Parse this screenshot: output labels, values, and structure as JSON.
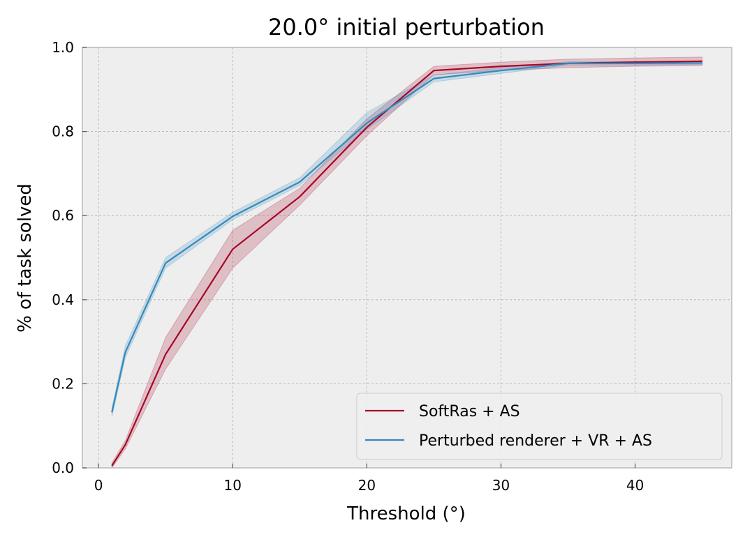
{
  "chart_data": {
    "type": "line",
    "title": "20.0° initial perturbation",
    "xlabel": "Threshold (°)",
    "ylabel": "% of task solved",
    "xlim": [
      -1.2,
      47.2
    ],
    "ylim": [
      0.0,
      1.0
    ],
    "xticks": [
      0,
      10,
      20,
      30,
      40
    ],
    "yticks": [
      0.0,
      0.2,
      0.4,
      0.6,
      0.8,
      1.0
    ],
    "xtick_labels": [
      "0",
      "10",
      "20",
      "30",
      "40"
    ],
    "ytick_labels": [
      "0.0",
      "0.2",
      "0.4",
      "0.6",
      "0.8",
      "1.0"
    ],
    "grid": true,
    "legend_position": "bottom-right",
    "series": [
      {
        "name": "SoftRas + AS",
        "color": "#a60628",
        "x": [
          1,
          2,
          5,
          10,
          15,
          20,
          25,
          30,
          35,
          40,
          45
        ],
        "y": [
          0.005,
          0.055,
          0.27,
          0.52,
          0.645,
          0.81,
          0.945,
          0.955,
          0.962,
          0.965,
          0.967
        ],
        "lower": [
          0.0,
          0.045,
          0.235,
          0.475,
          0.625,
          0.79,
          0.935,
          0.945,
          0.952,
          0.955,
          0.957
        ],
        "upper": [
          0.012,
          0.065,
          0.31,
          0.565,
          0.665,
          0.83,
          0.955,
          0.965,
          0.972,
          0.975,
          0.977
        ]
      },
      {
        "name": "Perturbed renderer + VR + AS",
        "color": "#348abd",
        "x": [
          1,
          2,
          5,
          10,
          15,
          20,
          25,
          30,
          35,
          40,
          45
        ],
        "y": [
          0.132,
          0.275,
          0.487,
          0.598,
          0.68,
          0.82,
          0.926,
          0.945,
          0.962,
          0.962,
          0.963
        ],
        "lower": [
          0.122,
          0.262,
          0.475,
          0.59,
          0.672,
          0.805,
          0.918,
          0.938,
          0.958,
          0.958,
          0.959
        ],
        "upper": [
          0.142,
          0.29,
          0.5,
          0.608,
          0.69,
          0.845,
          0.934,
          0.952,
          0.966,
          0.966,
          0.967
        ]
      }
    ]
  }
}
